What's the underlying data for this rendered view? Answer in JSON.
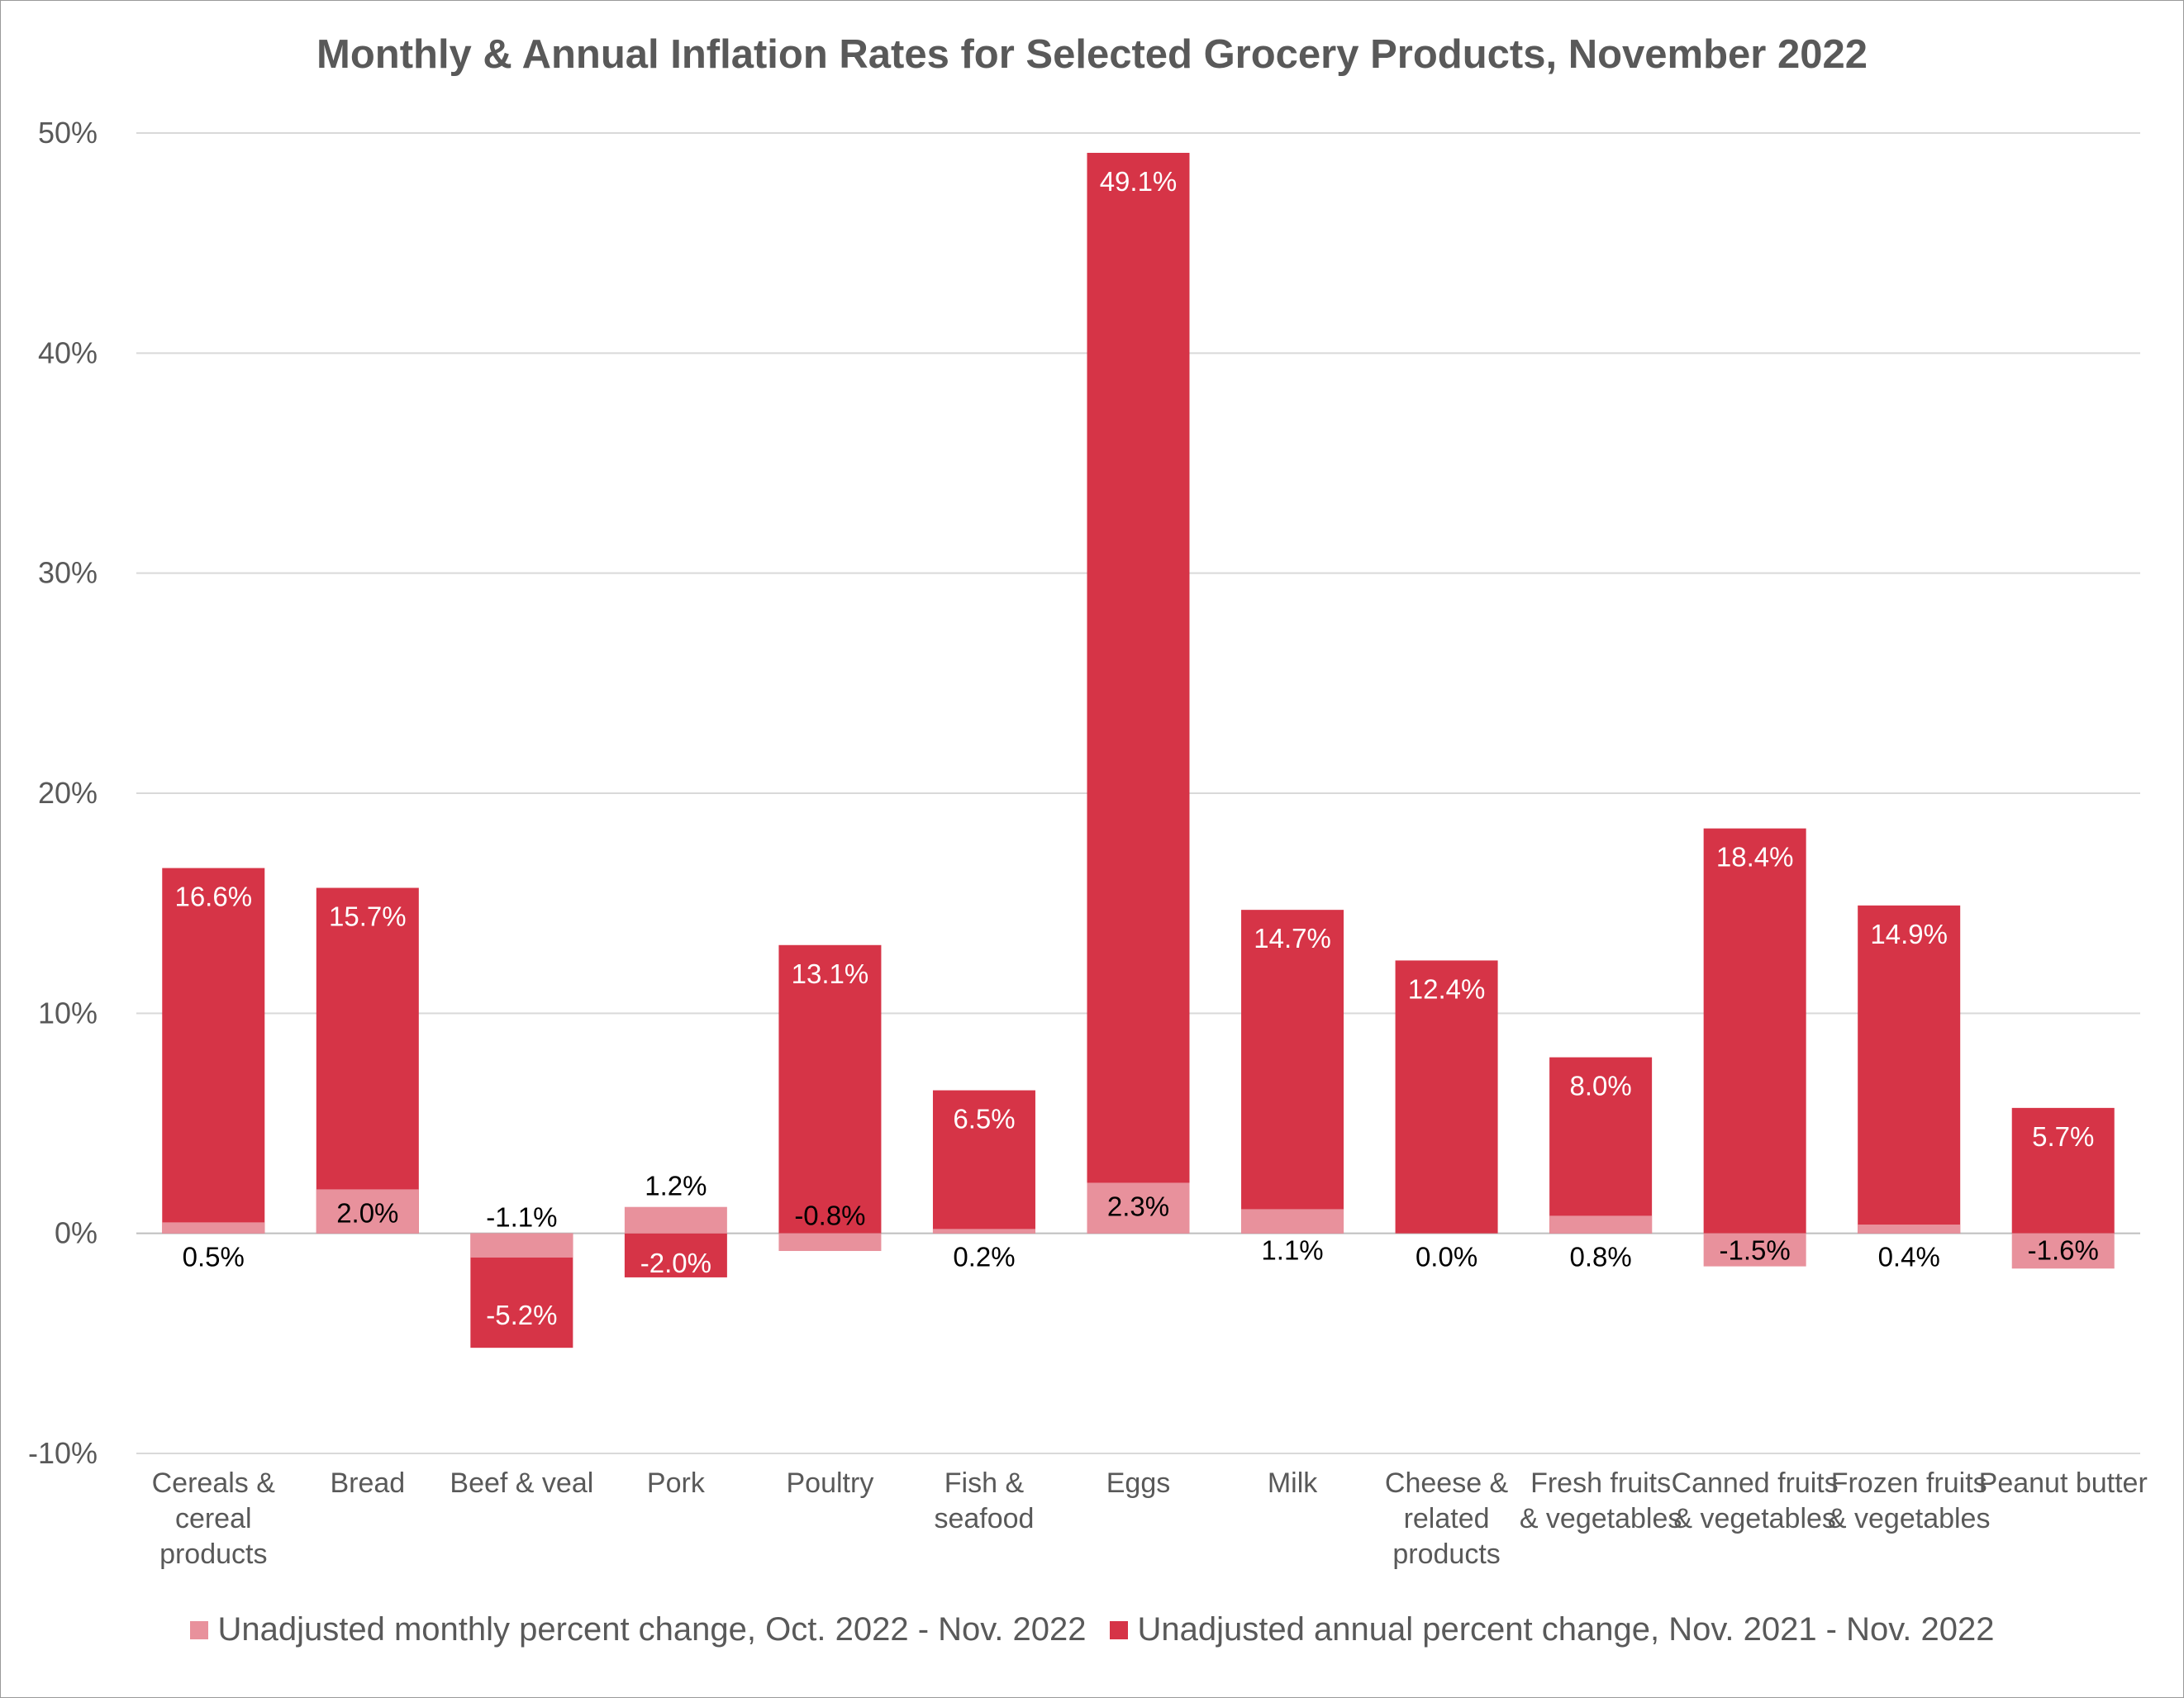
{
  "chart_data": {
    "type": "bar",
    "title": "Monthly & Annual Inflation Rates for Selected Grocery Products, November 2022",
    "categories": [
      "Cereals & cereal products",
      "Bread",
      "Beef & veal",
      "Pork",
      "Poultry",
      "Fish & seafood",
      "Eggs",
      "Milk",
      "Cheese & related products",
      "Fresh fruits & vegetables",
      "Canned fruits & vegetables",
      "Frozen fruits & vegetables",
      "Peanut butter"
    ],
    "series": [
      {
        "name": "Unadjusted monthly percent change, Oct. 2022 - Nov. 2022",
        "color": "#e8919c",
        "values": [
          0.5,
          2.0,
          -1.1,
          1.2,
          -0.8,
          0.2,
          2.3,
          1.1,
          0.0,
          0.8,
          -1.5,
          0.4,
          -1.6
        ],
        "labels": [
          "0.5%",
          "2.0%",
          "-1.1%",
          "1.2%",
          "-0.8%",
          "0.2%",
          "2.3%",
          "1.1%",
          "0.0%",
          "0.8%",
          "-1.5%",
          "0.4%",
          "-1.6%"
        ]
      },
      {
        "name": "Unadjusted annual percent change, Nov. 2021 - Nov. 2022",
        "color": "#d63447",
        "values": [
          16.6,
          15.7,
          -5.2,
          -2.0,
          13.1,
          6.5,
          49.1,
          14.7,
          12.4,
          8.0,
          18.4,
          14.9,
          5.7
        ],
        "labels": [
          "16.6%",
          "15.7%",
          "-5.2%",
          "-2.0%",
          "13.1%",
          "6.5%",
          "49.1%",
          "14.7%",
          "12.4%",
          "8.0%",
          "18.4%",
          "14.9%",
          "5.7%"
        ]
      }
    ],
    "ylim": [
      -10,
      50
    ],
    "yticks": [
      -10,
      0,
      10,
      20,
      30,
      40,
      50
    ],
    "ytick_labels": [
      "-10%",
      "0%",
      "10%",
      "20%",
      "30%",
      "40%",
      "50%"
    ],
    "grid": true,
    "legend_position": "bottom",
    "gridline_color": "#d9d9d9",
    "axis_color": "#bfbfbf"
  }
}
